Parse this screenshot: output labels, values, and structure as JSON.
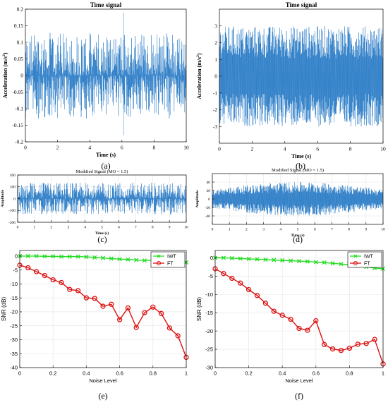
{
  "chart_data": [
    {
      "panel": "(a)",
      "type": "line",
      "title": "Time signal",
      "xlabel": "Time (s)",
      "ylabel": "Acceleration (m/s^2)",
      "xlim": [
        0,
        10
      ],
      "ylim": [
        -0.2,
        0.2
      ],
      "xticks": [
        0,
        2,
        4,
        6,
        8,
        10
      ],
      "yticks": [
        -0.2,
        -0.15,
        -0.1,
        -0.05,
        0,
        0.05,
        0.1,
        0.15,
        0.2
      ],
      "ytick_labels": [
        "-0.2",
        "-0.15",
        "-0.1",
        "-0.05",
        "0",
        "0.05",
        "0.1",
        "0.15",
        "0.2"
      ],
      "signal": {
        "envelope_typical": 0.1,
        "peak_max": 0.19,
        "peak_min": -0.18,
        "peak_time": 6.1
      },
      "color": "#2f7fc8",
      "grid": false
    },
    {
      "panel": "(b)",
      "type": "line",
      "title": "Time signal",
      "xlabel": "Time (s)",
      "ylabel": "Acceleration (m/s^2)",
      "xlim": [
        0,
        10
      ],
      "ylim": [
        -4,
        4
      ],
      "xticks": [
        0,
        2,
        4,
        6,
        8,
        10
      ],
      "yticks": [
        -3,
        -2,
        -1,
        0,
        1,
        2,
        3
      ],
      "ytick_labels": [
        "-3",
        "-2",
        "-1",
        "0",
        "1",
        "2",
        "3"
      ],
      "signal": {
        "envelope_typical": 3.0,
        "peak_max": 3.6,
        "peak_min": -3.4
      },
      "color": "#2f7fc8",
      "grid": false
    },
    {
      "panel": "(c)",
      "type": "line",
      "title": "Modified Signal (MO = 1.5)",
      "xlabel": "Time (s)",
      "ylabel": "Amplitude",
      "xlim": [
        0,
        10
      ],
      "ylim": [
        -200,
        200
      ],
      "xticks": [
        0,
        1,
        2,
        3,
        4,
        5,
        6,
        7,
        8,
        9,
        10
      ],
      "yticks": [
        -200,
        -100,
        0,
        100,
        200
      ],
      "ytick_labels": [
        "-200",
        "-100",
        "0",
        "100",
        "200"
      ],
      "signal": {
        "envelope_typical": 90,
        "peak_max": 160,
        "peak_min": -150
      },
      "color": "#2f7fc8",
      "grid": true
    },
    {
      "panel": "(d)",
      "type": "line",
      "title": "Modified Signal (MO = 1.5)",
      "xlabel": "Time (s)",
      "ylabel": "Amplitude",
      "xlim": [
        0,
        10
      ],
      "ylim": [
        -60,
        60
      ],
      "xticks": [
        0,
        1,
        2,
        3,
        4,
        5,
        6,
        7,
        8,
        9,
        10
      ],
      "yticks": [
        -40,
        -20,
        0,
        20,
        40
      ],
      "ytick_labels": [
        "-40",
        "-20",
        "0",
        "20",
        "40"
      ],
      "signal": {
        "envelope_typical": 40,
        "peak_max": 55,
        "peak_min": -50
      },
      "color": "#2f7fc8",
      "grid": true
    },
    {
      "panel": "(e)",
      "type": "line",
      "xlabel": "Noise Level",
      "ylabel": "SNR (dB)",
      "xlim": [
        0,
        1
      ],
      "ylim": [
        -40,
        2
      ],
      "xticks": [
        0,
        0.2,
        0.4,
        0.6,
        0.8,
        1
      ],
      "xtick_labels": [
        "0",
        "0.2",
        "0.4",
        "0.6",
        "0.8",
        "1"
      ],
      "yticks": [
        0,
        -5,
        -10,
        -15,
        -20,
        -25,
        -30,
        -35,
        -40
      ],
      "ytick_labels": [
        "0",
        "-5",
        "-10",
        "-15",
        "-20",
        "-25",
        "-30",
        "-35",
        "-40"
      ],
      "legend_position": "top-right",
      "grid": true,
      "x": [
        0,
        0.05,
        0.1,
        0.15,
        0.2,
        0.25,
        0.3,
        0.35,
        0.4,
        0.45,
        0.5,
        0.55,
        0.6,
        0.65,
        0.7,
        0.75,
        0.8,
        0.85,
        0.9,
        0.95,
        1.0
      ],
      "series": [
        {
          "name": "IWT",
          "marker": "x",
          "color": "#22dd22",
          "values": [
            0,
            0,
            0,
            -0.1,
            -0.1,
            -0.2,
            -0.2,
            -0.2,
            -0.3,
            -0.5,
            -0.7,
            -0.9,
            -1.1,
            -1.2,
            -1.4,
            -1.6,
            -1.5,
            -1.7,
            -1.9,
            -2.1,
            -2.3
          ]
        },
        {
          "name": "FT",
          "marker": "o",
          "color": "#dd1111",
          "values": [
            -3.3,
            -4.2,
            -5.6,
            -7.0,
            -8.5,
            -9.5,
            -12.0,
            -12.4,
            -15.0,
            -15.2,
            -18.0,
            -17.3,
            -22.8,
            -18.6,
            -25.6,
            -20.3,
            -18.3,
            -20.6,
            -25.8,
            -28.6,
            -36.3
          ]
        }
      ]
    },
    {
      "panel": "(f)",
      "type": "line",
      "xlabel": "Noise Level",
      "ylabel": "SNR (dB)",
      "xlim": [
        0,
        1
      ],
      "ylim": [
        -30,
        2
      ],
      "xticks": [
        0,
        0.2,
        0.4,
        0.6,
        0.8,
        1
      ],
      "xtick_labels": [
        "0",
        "0.2",
        "0.4",
        "0.6",
        "0.8",
        "1"
      ],
      "yticks": [
        0,
        -5,
        -10,
        -15,
        -20,
        -25,
        -30
      ],
      "ytick_labels": [
        "0",
        "-5",
        "-10",
        "-15",
        "-20",
        "-25",
        "-30"
      ],
      "legend_position": "top-right",
      "grid": true,
      "x": [
        0,
        0.05,
        0.1,
        0.15,
        0.2,
        0.25,
        0.3,
        0.35,
        0.4,
        0.45,
        0.5,
        0.55,
        0.6,
        0.65,
        0.7,
        0.75,
        0.8,
        0.85,
        0.9,
        0.95,
        1.0
      ],
      "series": [
        {
          "name": "IWT",
          "marker": "x",
          "color": "#22dd22",
          "values": [
            0,
            0,
            -0.1,
            -0.2,
            -0.3,
            -0.4,
            -0.5,
            -0.6,
            -0.7,
            -0.8,
            -0.9,
            -1.0,
            -1.2,
            -1.3,
            -1.5,
            -1.7,
            -1.9,
            -2.2,
            -2.5,
            -2.8,
            -3.0
          ]
        },
        {
          "name": "FT",
          "marker": "o",
          "color": "#dd1111",
          "values": [
            -3.0,
            -4.3,
            -5.6,
            -6.9,
            -8.7,
            -10.3,
            -12.4,
            -14.6,
            -15.7,
            -16.8,
            -19.3,
            -19.8,
            -17.2,
            -23.7,
            -24.9,
            -25.3,
            -24.7,
            -23.6,
            -23.4,
            -22.3,
            -29.0
          ]
        }
      ]
    }
  ]
}
